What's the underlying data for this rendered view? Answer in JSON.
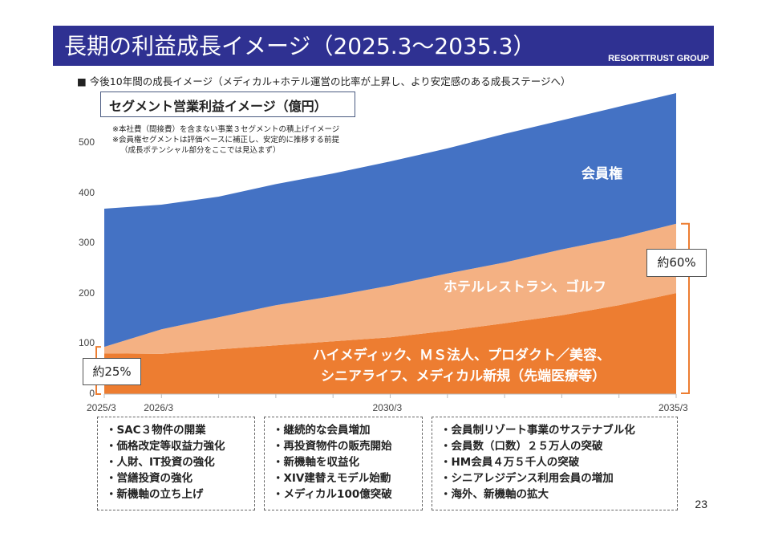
{
  "header": {
    "title": "長期の利益成長イメージ（2025.3～2035.3）",
    "brand": "RESORTTRUST GROUP"
  },
  "subtitle": "■ 今後10年間の成長イメージ（メディカル+ホテル運営の比率が上昇し、より安定感のある成長ステージへ）",
  "chart_box_title": "セグメント営業利益イメージ（億円）",
  "notes": [
    "※本社費（間接費）を含まない事業３セグメントの積上げイメージ",
    "※会員権セグメントは評価ベースに補正し、安定的に推移する前提",
    "（成長ポテンシャル部分をここでは見込まず）"
  ],
  "chart_data": {
    "type": "area",
    "stacked": true,
    "title": "セグメント営業利益イメージ（億円）",
    "x": [
      "2025/3",
      "2026/3",
      "2027/3",
      "2028/3",
      "2029/3",
      "2030/3",
      "2031/3",
      "2032/3",
      "2033/3",
      "2034/3",
      "2035/3"
    ],
    "x_tick_labels": [
      "2025/3",
      "2026/3",
      "2030/3",
      "2035/3"
    ],
    "y_ticks": [
      0,
      100,
      200,
      300,
      400,
      500
    ],
    "ylim": [
      0,
      600
    ],
    "series": [
      {
        "name": "ハイメディック、ＭＳ法人、プロダクト／美容、シニアライフ、メディカル新規（先端医療等）",
        "color": "#ed7d31",
        "values": [
          81,
          80,
          89,
          97,
          105,
          113,
          126,
          141,
          157,
          177,
          201
        ]
      },
      {
        "name": "ホテルレストラン、ゴルフ",
        "color": "#f4b183",
        "values": [
          13,
          49,
          64,
          80,
          90,
          103,
          114,
          121,
          131,
          134,
          138
        ]
      },
      {
        "name": "会員権",
        "color": "#4472c4",
        "values": [
          275,
          248,
          240,
          241,
          244,
          247,
          249,
          256,
          257,
          261,
          260
        ]
      }
    ],
    "labels": {
      "membership": "会員権",
      "hotel": "ホテルレストラン、ゴルフ",
      "medical_line1": "ハイメディック、ＭＳ法人、プロダクト／美容、",
      "medical_line2": "シニアライフ、メディカル新規（先端医療等）"
    },
    "annotations": {
      "start_share": "約25%",
      "end_share": "約60%"
    }
  },
  "bullets": [
    [
      "・SAC３物件の開業",
      "・価格改定等収益力強化",
      "・人財、IT投資の強化",
      "・営繕投資の強化",
      "・新機軸の立ち上げ"
    ],
    [
      "・継続的な会員増加",
      "・再投資物件の販売開始",
      "・新機軸を収益化",
      "・XIV建替えモデル始動",
      "・メディカル100億突破"
    ],
    [
      "・会員制リゾート事業のサステナブル化",
      "・会員数（口数）２５万人の突破",
      "・HM会員４万５千人の突破",
      "・シニアレジデンス利用会員の増加",
      "・海外、新機軸の拡大"
    ]
  ],
  "page_number": "23"
}
